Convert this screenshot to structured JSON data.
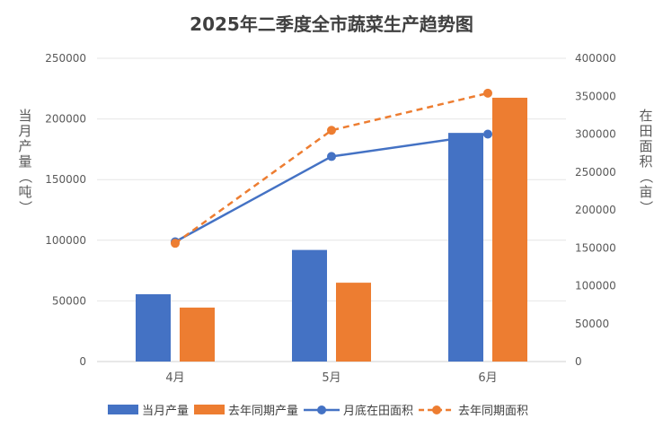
{
  "chart_data": {
    "type": "bar",
    "title": "2025年二季度全市蔬菜生产趋势图",
    "categories": [
      "4月",
      "5月",
      "6月"
    ],
    "ylabel": "当月产量（吨）",
    "y2label": "在田面积（亩）",
    "ylim": [
      0,
      250000
    ],
    "y2lim": [
      0,
      400000
    ],
    "yticks": [
      "0",
      "50000",
      "100000",
      "150000",
      "200000",
      "250000"
    ],
    "y2ticks": [
      "0",
      "50000",
      "100000",
      "150000",
      "200000",
      "250000",
      "300000",
      "350000",
      "400000"
    ],
    "grid": true,
    "legend_position": "bottom",
    "series": [
      {
        "name": "当月产量",
        "kind": "bar",
        "axis": "left",
        "color": "#4472C4",
        "values": [
          55500,
          92000,
          188500
        ]
      },
      {
        "name": "去年同期产量",
        "kind": "bar",
        "axis": "left",
        "color": "#ED7D31",
        "values": [
          44500,
          65000,
          217500
        ]
      },
      {
        "name": "月底在田面积",
        "kind": "line",
        "axis": "right",
        "color": "#4472C4",
        "dash": false,
        "values": [
          158000,
          270500,
          300000
        ]
      },
      {
        "name": "去年同期面积",
        "kind": "line",
        "axis": "right",
        "color": "#ED7D31",
        "dash": true,
        "values": [
          156000,
          305000,
          354000
        ]
      }
    ]
  }
}
